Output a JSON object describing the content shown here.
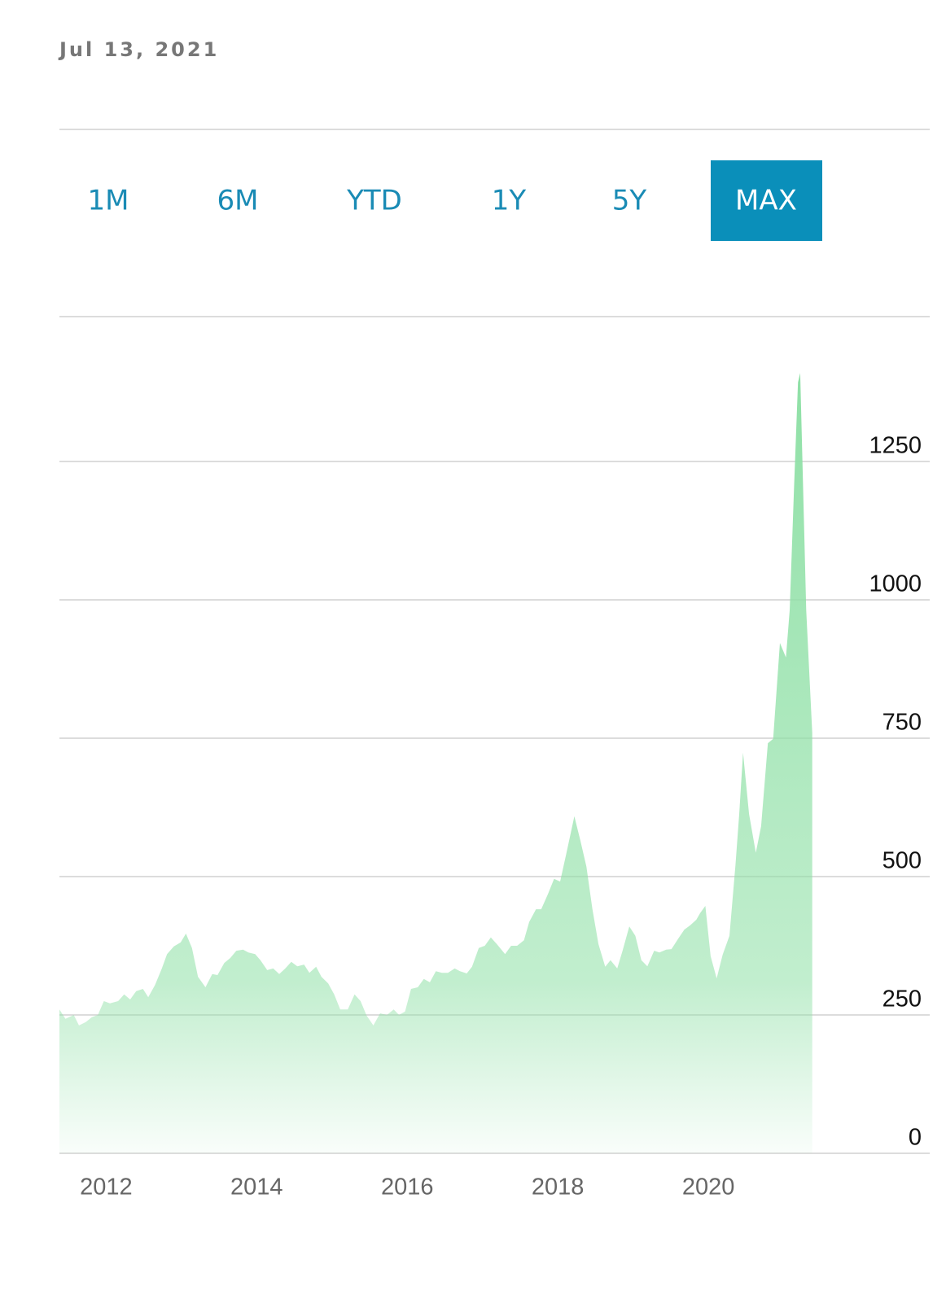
{
  "date": "Jul 13, 2021",
  "range_buttons": [
    "1M",
    "6M",
    "YTD",
    "1Y",
    "5Y",
    "MAX"
  ],
  "selected": "MAX",
  "chart_data": {
    "type": "area",
    "color": "#8fe0a6",
    "grid": true,
    "xlim": [
      2011.38,
      2022.94
    ],
    "xticks": [
      2012,
      2014,
      2016,
      2018,
      2020
    ],
    "ylim": [
      0,
      1500
    ],
    "yticks": [
      0,
      250,
      500,
      750,
      1000,
      1250
    ],
    "x": [
      2011.38,
      2011.46,
      2011.57,
      2011.64,
      2011.73,
      2011.81,
      2011.89,
      2011.97,
      2012.05,
      2012.16,
      2012.24,
      2012.32,
      2012.4,
      2012.49,
      2012.56,
      2012.65,
      2012.74,
      2012.81,
      2012.9,
      2012.99,
      2013.06,
      2013.14,
      2013.22,
      2013.32,
      2013.41,
      2013.48,
      2013.57,
      2013.65,
      2013.73,
      2013.82,
      2013.89,
      2013.98,
      2014.05,
      2014.14,
      2014.22,
      2014.3,
      2014.38,
      2014.46,
      2014.54,
      2014.63,
      2014.7,
      2014.79,
      2014.86,
      2014.95,
      2015.03,
      2015.11,
      2015.21,
      2015.3,
      2015.38,
      2015.46,
      2015.55,
      2015.64,
      2015.73,
      2015.82,
      2015.89,
      2015.97,
      2016.05,
      2016.14,
      2016.22,
      2016.3,
      2016.38,
      2016.46,
      2016.54,
      2016.63,
      2016.7,
      2016.79,
      2016.86,
      2016.95,
      2017.03,
      2017.11,
      2017.19,
      2017.3,
      2017.38,
      2017.46,
      2017.55,
      2017.62,
      2017.71,
      2017.78,
      2017.87,
      2017.95,
      2018.03,
      2018.11,
      2018.22,
      2018.3,
      2018.38,
      2018.46,
      2018.54,
      2018.63,
      2018.7,
      2018.79,
      2018.86,
      2018.95,
      2019.03,
      2019.11,
      2019.19,
      2019.28,
      2019.35,
      2019.44,
      2019.51,
      2019.6,
      2019.68,
      2019.76,
      2019.84,
      2019.89,
      2019.96,
      2020.03,
      2020.11,
      2020.19,
      2020.28,
      2020.36,
      2020.41,
      2020.46,
      2020.54,
      2020.63,
      2020.7,
      2020.79,
      2020.86,
      2020.95,
      2021.03,
      2021.08,
      2021.14,
      2021.19,
      2021.22,
      2021.3,
      2021.38
    ],
    "values": [
      260,
      243,
      250,
      231,
      237,
      246,
      250,
      275,
      271,
      275,
      287,
      278,
      293,
      297,
      282,
      304,
      334,
      360,
      374,
      381,
      397,
      371,
      319,
      300,
      324,
      322,
      344,
      353,
      366,
      368,
      363,
      360,
      349,
      331,
      334,
      324,
      334,
      346,
      338,
      341,
      326,
      337,
      319,
      307,
      287,
      260,
      260,
      287,
      275,
      249,
      231,
      253,
      250,
      260,
      250,
      256,
      297,
      300,
      315,
      309,
      329,
      326,
      326,
      334,
      329,
      325,
      337,
      371,
      375,
      390,
      378,
      360,
      375,
      375,
      385,
      418,
      441,
      441,
      469,
      496,
      491,
      540,
      609,
      565,
      518,
      441,
      378,
      337,
      349,
      334,
      366,
      410,
      393,
      349,
      338,
      366,
      363,
      368,
      369,
      388,
      404,
      412,
      422,
      434,
      447,
      356,
      316,
      359,
      393,
      521,
      613,
      724,
      613,
      543,
      591,
      741,
      749,
      922,
      896,
      981,
      1209,
      1393,
      1410,
      981,
      760
    ]
  }
}
